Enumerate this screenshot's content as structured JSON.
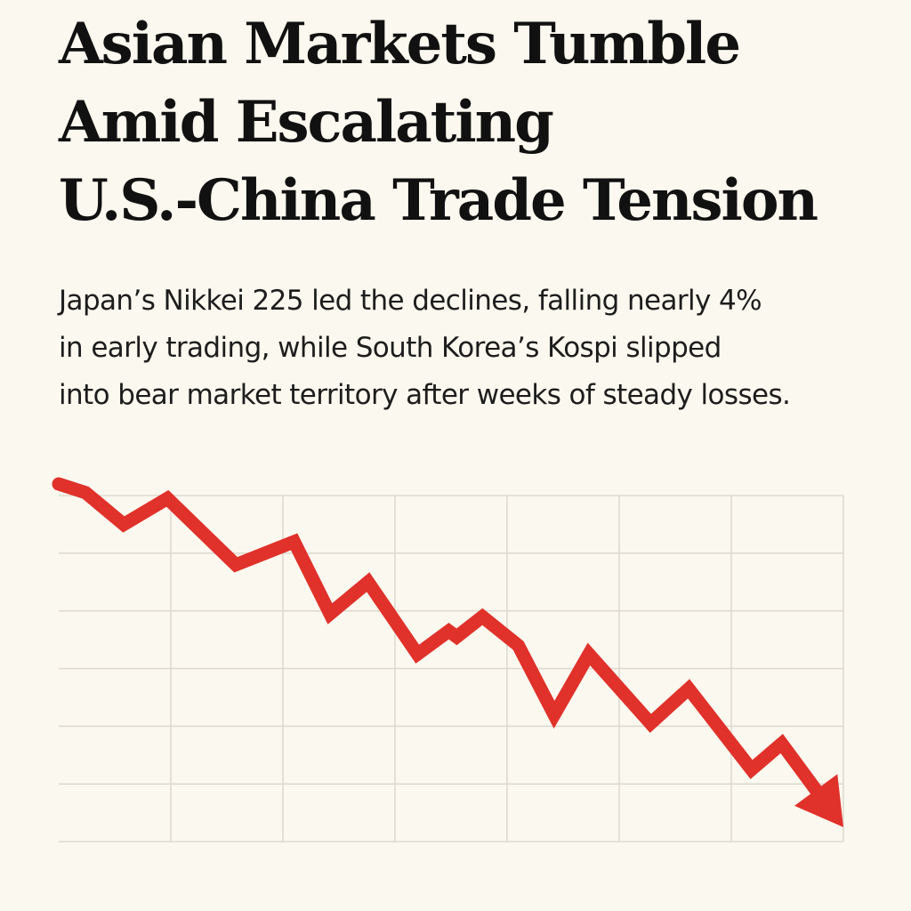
{
  "headline": {
    "lines": [
      "Asian Markets Tumble",
      "Amid Escalating",
      "U.S.-China Trade Tension"
    ]
  },
  "dek": {
    "lines": [
      "Japan’s Nikkei 225 led the declines, falling nearly 4%",
      "in early trading, while South Korea’s Kospi slipped",
      "into bear market territory after weeks of steady losses."
    ]
  },
  "chart_data": {
    "type": "line",
    "title": "",
    "xlabel": "",
    "ylabel": "",
    "grid": true,
    "legend": "none",
    "line_color": "#e0312b",
    "grid_color": "#dedad0",
    "end_marker": "arrow-head",
    "xlim": [
      0,
      7
    ],
    "ylim": [
      0,
      6
    ],
    "x_gridlines": [
      1,
      2,
      3,
      4,
      5,
      6,
      7
    ],
    "y_gridlines": [
      0,
      1,
      2,
      3,
      4,
      5,
      6
    ],
    "series": [
      {
        "x": [
          0,
          0.24,
          0.58,
          0.97,
          1.58,
          2.1,
          2.42,
          2.76,
          3.2,
          3.48,
          3.55,
          3.78,
          4.1,
          4.42,
          4.73,
          5.28,
          5.62,
          6.18,
          6.45,
          7.0
        ],
        "y": [
          6.2,
          6.05,
          5.5,
          5.95,
          4.8,
          5.2,
          3.95,
          4.5,
          3.25,
          3.65,
          3.55,
          3.9,
          3.4,
          2.2,
          3.25,
          2.05,
          2.65,
          1.25,
          1.7,
          0.25
        ]
      }
    ]
  }
}
